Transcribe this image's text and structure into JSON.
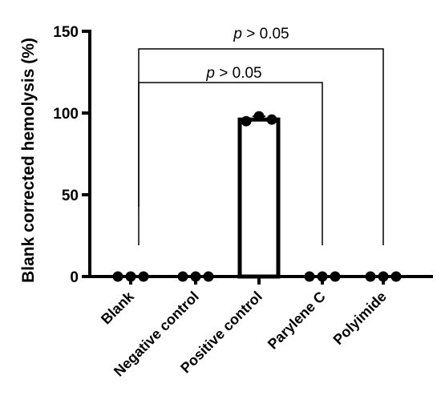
{
  "chart_data": {
    "type": "bar",
    "title": "",
    "xlabel": "",
    "ylabel": "Blank corrected hemolysis (%)",
    "ylim": [
      0,
      150
    ],
    "yticks": [
      0,
      50,
      100,
      150
    ],
    "categories": [
      "Blank",
      "Negative control",
      "Positive control",
      "Parylene C",
      "Polyimide"
    ],
    "values": [
      0,
      0,
      96,
      0,
      0
    ],
    "points": [
      [
        0,
        0,
        0
      ],
      [
        0,
        0,
        0
      ],
      [
        95,
        98,
        96
      ],
      [
        0,
        0,
        0
      ],
      [
        0,
        0,
        0
      ]
    ],
    "bar_shown": [
      false,
      false,
      true,
      false,
      false
    ],
    "comparisons": [
      {
        "from": "Blank",
        "to": "Polyimide",
        "label_p": "p",
        "label_rest": " > 0.05"
      },
      {
        "from": "Blank",
        "to": "Parylene C",
        "label_p": "p",
        "label_rest": " > 0.05"
      }
    ]
  }
}
